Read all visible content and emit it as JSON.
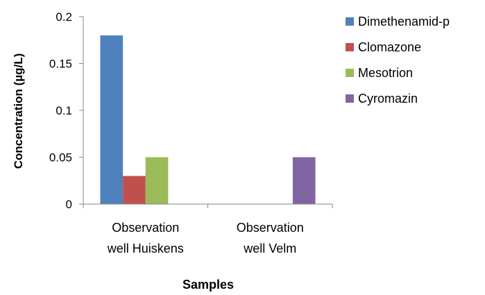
{
  "chart_data": {
    "type": "bar",
    "title": "",
    "xlabel": "Samples",
    "ylabel": "Concentration (µg/L)",
    "ylim": [
      0,
      0.2
    ],
    "yticks": [
      "0",
      "0.05",
      "0.1",
      "0.15",
      "0.2"
    ],
    "categories": [
      [
        "Observation",
        "well Huiskens"
      ],
      [
        "Observation",
        "well Velm"
      ]
    ],
    "series": [
      {
        "name": "Dimethenamid-p",
        "color": "#4f81bd",
        "values": [
          0.18,
          0
        ]
      },
      {
        "name": "Clomazone",
        "color": "#c0504d",
        "values": [
          0.03,
          0
        ]
      },
      {
        "name": "Mesotrion",
        "color": "#9bbb59",
        "values": [
          0.05,
          0
        ]
      },
      {
        "name": "Cyromazin",
        "color": "#8064a2",
        "values": [
          0,
          0.05
        ]
      }
    ],
    "grid": false,
    "legend_position": "right"
  }
}
